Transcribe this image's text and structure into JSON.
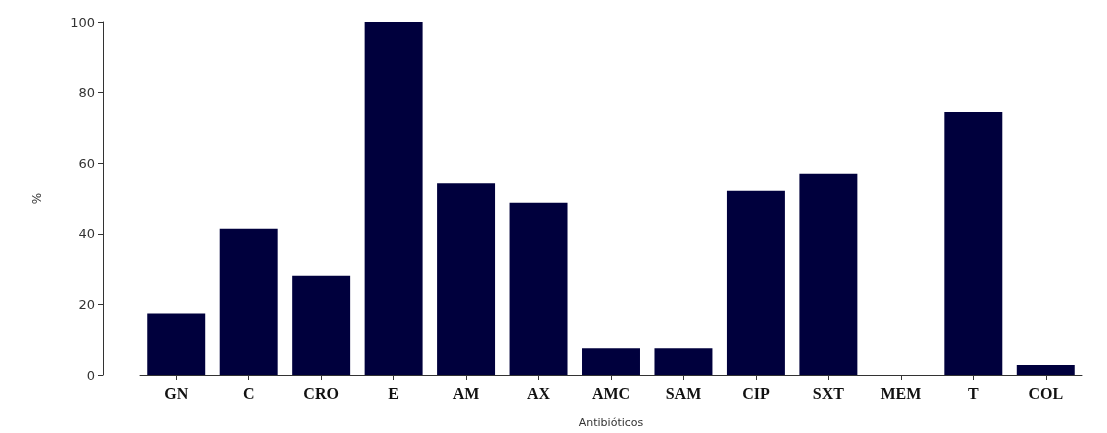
{
  "chart_data": {
    "type": "bar",
    "xlabel": "Antibióticos",
    "ylabel": "%",
    "categories": [
      "GN",
      "C",
      "CRO",
      "E",
      "AM",
      "AX",
      "AMC",
      "SAM",
      "CIP",
      "SXT",
      "MEM",
      "T",
      "COL"
    ],
    "values": [
      17.4,
      41.4,
      28.1,
      100,
      54.3,
      48.8,
      7.6,
      7.6,
      52.2,
      57.0,
      0,
      74.5,
      2.8
    ],
    "color": "#00003d",
    "ylim": [
      0,
      100
    ],
    "yticks": [
      0,
      20,
      40,
      60,
      80,
      100
    ],
    "grid": false
  }
}
